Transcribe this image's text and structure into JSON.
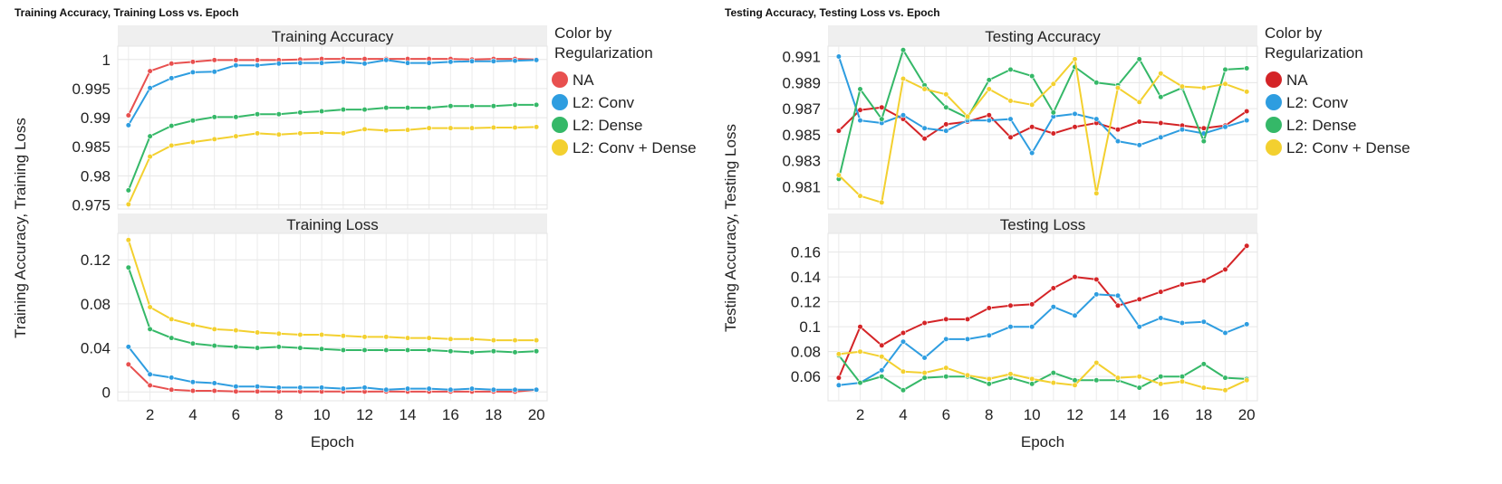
{
  "chart_data": [
    {
      "type": "line",
      "title": "Training Accuracy, Training Loss vs. Epoch",
      "xlabel": "Epoch",
      "ylabel": "Training Accuracy, Training Loss",
      "xlim": [
        0.5,
        20.5
      ],
      "x_ticks": [
        2,
        4,
        6,
        8,
        10,
        12,
        14,
        16,
        18,
        20
      ],
      "legend": {
        "title_lines": [
          "Color by",
          "Regularization"
        ],
        "entries": [
          "NA",
          "L2: Conv",
          "L2: Dense",
          "L2: Conv + Dense"
        ],
        "position": "right"
      },
      "x": [
        1,
        2,
        3,
        4,
        5,
        6,
        7,
        8,
        9,
        10,
        11,
        12,
        13,
        14,
        15,
        16,
        17,
        18,
        19,
        20
      ],
      "panels": [
        {
          "title": "Training Accuracy",
          "ylim": [
            0.9743,
            1.0023
          ],
          "y_ticks": [
            0.975,
            0.98,
            0.985,
            0.99,
            0.995,
            1
          ],
          "series": [
            {
              "name": "NA",
              "values": [
                0.9904,
                0.998,
                0.9993,
                0.9996,
                0.9999,
                0.9999,
                0.9999,
                0.9999,
                1.0,
                1.0001,
                1.0001,
                1.0001,
                1.0001,
                1.0001,
                1.0001,
                1.0001,
                1.0,
                1.0001,
                1.0001,
                1.0
              ]
            },
            {
              "name": "L2: Conv",
              "values": [
                0.9887,
                0.9951,
                0.9968,
                0.9978,
                0.9979,
                0.999,
                0.999,
                0.9993,
                0.9994,
                0.9994,
                0.9996,
                0.9993,
                0.9999,
                0.9994,
                0.9994,
                0.9996,
                0.9997,
                0.9997,
                0.9998,
                0.9999
              ]
            },
            {
              "name": "L2: Dense",
              "values": [
                0.9775,
                0.9868,
                0.9886,
                0.9895,
                0.9901,
                0.9901,
                0.9906,
                0.9906,
                0.9909,
                0.9911,
                0.9914,
                0.9914,
                0.9917,
                0.9917,
                0.9917,
                0.992,
                0.992,
                0.992,
                0.9922,
                0.9922
              ]
            },
            {
              "name": "L2: Conv + Dense",
              "values": [
                0.9751,
                0.9833,
                0.9852,
                0.9858,
                0.9863,
                0.9868,
                0.9873,
                0.9871,
                0.9873,
                0.9874,
                0.9873,
                0.988,
                0.9878,
                0.9879,
                0.9882,
                0.9882,
                0.9882,
                0.9883,
                0.9883,
                0.9884
              ]
            }
          ]
        },
        {
          "title": "Training Loss",
          "ylim": [
            -0.008,
            0.144
          ],
          "y_ticks": [
            0,
            0.04,
            0.08,
            0.12
          ],
          "series": [
            {
              "name": "NA",
              "values": [
                0.025,
                0.006,
                0.002,
                0.001,
                0.001,
                0.0005,
                0.0005,
                0.0005,
                0.0005,
                0.0004,
                0.0004,
                0.0003,
                0.0004,
                0.0003,
                0.0003,
                0.0003,
                0.0003,
                0.0003,
                0.0002,
                0.002
              ]
            },
            {
              "name": "L2: Conv",
              "values": [
                0.041,
                0.016,
                0.013,
                0.009,
                0.008,
                0.005,
                0.005,
                0.004,
                0.004,
                0.004,
                0.003,
                0.004,
                0.002,
                0.003,
                0.003,
                0.002,
                0.003,
                0.002,
                0.002,
                0.002
              ]
            },
            {
              "name": "L2: Dense",
              "values": [
                0.113,
                0.057,
                0.049,
                0.044,
                0.042,
                0.041,
                0.04,
                0.041,
                0.04,
                0.039,
                0.038,
                0.038,
                0.038,
                0.038,
                0.038,
                0.037,
                0.036,
                0.037,
                0.036,
                0.037
              ]
            },
            {
              "name": "L2: Conv + Dense",
              "values": [
                0.138,
                0.077,
                0.066,
                0.061,
                0.057,
                0.056,
                0.054,
                0.053,
                0.052,
                0.052,
                0.051,
                0.05,
                0.05,
                0.049,
                0.049,
                0.048,
                0.048,
                0.047,
                0.047,
                0.047
              ]
            }
          ]
        }
      ]
    },
    {
      "type": "line",
      "title": "Testing Accuracy, Testing Loss vs. Epoch",
      "xlabel": "Epoch",
      "ylabel": "Testing Accuracy, Testing Loss",
      "xlim": [
        0.5,
        20.5
      ],
      "x_ticks": [
        2,
        4,
        6,
        8,
        10,
        12,
        14,
        16,
        18,
        20
      ],
      "legend": {
        "title_lines": [
          "Color by",
          "Regularization"
        ],
        "entries": [
          "NA",
          "L2: Conv",
          "L2: Dense",
          "L2: Conv + Dense"
        ],
        "position": "right"
      },
      "x": [
        1,
        2,
        3,
        4,
        5,
        6,
        7,
        8,
        9,
        10,
        11,
        12,
        13,
        14,
        15,
        16,
        17,
        18,
        19,
        20
      ],
      "panels": [
        {
          "title": "Testing Accuracy",
          "ylim": [
            0.9793,
            0.9918
          ],
          "y_ticks": [
            0.981,
            0.983,
            0.985,
            0.987,
            0.989,
            0.991
          ],
          "series": [
            {
              "name": "NA",
              "values": [
                0.9853,
                0.9869,
                0.9871,
                0.9862,
                0.9847,
                0.9858,
                0.986,
                0.9865,
                0.9848,
                0.9856,
                0.9851,
                0.9856,
                0.9859,
                0.9854,
                0.986,
                0.9859,
                0.9857,
                0.9855,
                0.9857,
                0.9868
              ]
            },
            {
              "name": "L2: Conv",
              "values": [
                0.991,
                0.9861,
                0.9859,
                0.9865,
                0.9855,
                0.9853,
                0.9861,
                0.9861,
                0.9862,
                0.9836,
                0.9864,
                0.9866,
                0.9862,
                0.9845,
                0.9842,
                0.9848,
                0.9854,
                0.9851,
                0.9856,
                0.9861
              ]
            },
            {
              "name": "L2: Dense",
              "values": [
                0.9816,
                0.9885,
                0.9862,
                0.9915,
                0.9888,
                0.9871,
                0.9863,
                0.9892,
                0.99,
                0.9895,
                0.9867,
                0.9902,
                0.989,
                0.9888,
                0.9908,
                0.9879,
                0.9886,
                0.9845,
                0.99,
                0.9901
              ]
            },
            {
              "name": "L2: Conv + Dense",
              "values": [
                0.9819,
                0.9803,
                0.9798,
                0.9893,
                0.9885,
                0.9881,
                0.9864,
                0.9885,
                0.9876,
                0.9873,
                0.9889,
                0.9908,
                0.9805,
                0.9886,
                0.9875,
                0.9897,
                0.9887,
                0.9886,
                0.9889,
                0.9883
              ]
            }
          ]
        },
        {
          "title": "Testing Loss",
          "ylim": [
            0.0405,
            0.175
          ],
          "y_ticks": [
            0.06,
            0.08,
            0.1,
            0.12,
            0.14,
            0.16
          ],
          "series": [
            {
              "name": "NA",
              "values": [
                0.059,
                0.1,
                0.085,
                0.095,
                0.103,
                0.106,
                0.106,
                0.115,
                0.117,
                0.118,
                0.131,
                0.14,
                0.138,
                0.117,
                0.122,
                0.128,
                0.134,
                0.137,
                0.146,
                0.165
              ]
            },
            {
              "name": "L2: Conv",
              "values": [
                0.053,
                0.055,
                0.065,
                0.088,
                0.075,
                0.09,
                0.09,
                0.093,
                0.1,
                0.1,
                0.116,
                0.109,
                0.126,
                0.125,
                0.1,
                0.107,
                0.103,
                0.104,
                0.095,
                0.102
              ]
            },
            {
              "name": "L2: Dense",
              "values": [
                0.077,
                0.055,
                0.06,
                0.049,
                0.059,
                0.06,
                0.06,
                0.054,
                0.059,
                0.054,
                0.063,
                0.057,
                0.057,
                0.057,
                0.051,
                0.06,
                0.06,
                0.07,
                0.059,
                0.058
              ]
            },
            {
              "name": "L2: Conv + Dense",
              "values": [
                0.078,
                0.08,
                0.076,
                0.064,
                0.063,
                0.067,
                0.061,
                0.058,
                0.062,
                0.058,
                0.055,
                0.053,
                0.071,
                0.059,
                0.06,
                0.054,
                0.056,
                0.051,
                0.049,
                0.057
              ]
            }
          ]
        }
      ]
    }
  ],
  "charts_style": [
    {
      "colors": {
        "NA": "#e8504f",
        "L2: Conv": "#2e9de0",
        "L2: Dense": "#35b868",
        "L2: Conv + Dense": "#f3d02f"
      }
    },
    {
      "colors": {
        "NA": "#d42427",
        "L2: Conv": "#2e9de0",
        "L2: Dense": "#35b868",
        "L2: Conv + Dense": "#f3d02f"
      }
    }
  ]
}
